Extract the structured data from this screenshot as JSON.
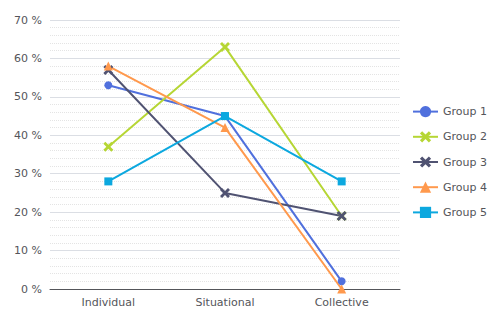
{
  "chart_data": {
    "type": "line",
    "categories": [
      "Individual",
      "Situational",
      "Collective"
    ],
    "series": [
      {
        "name": "Group 1",
        "values": [
          53,
          45,
          2
        ],
        "marker": "circle"
      },
      {
        "name": "Group 2",
        "values": [
          37,
          63,
          19
        ],
        "marker": "x"
      },
      {
        "name": "Group 3",
        "values": [
          57,
          25,
          19
        ],
        "marker": "x"
      },
      {
        "name": "Group 4",
        "values": [
          58,
          42,
          0
        ],
        "marker": "triangle"
      },
      {
        "name": "Group 5",
        "values": [
          28,
          45,
          28
        ],
        "marker": "square"
      }
    ],
    "ylim": [
      0,
      70
    ],
    "yticks": [
      {
        "value": 0,
        "label": "0 %"
      },
      {
        "value": 10,
        "label": "10 %"
      },
      {
        "value": 20,
        "label": "20 %"
      },
      {
        "value": 30,
        "label": "30 %"
      },
      {
        "value": 40,
        "label": "40 %"
      },
      {
        "value": 50,
        "label": "50 %"
      },
      {
        "value": 60,
        "label": "60 %"
      },
      {
        "value": 70,
        "label": "70 %"
      }
    ],
    "grid": true,
    "legend": "right"
  }
}
